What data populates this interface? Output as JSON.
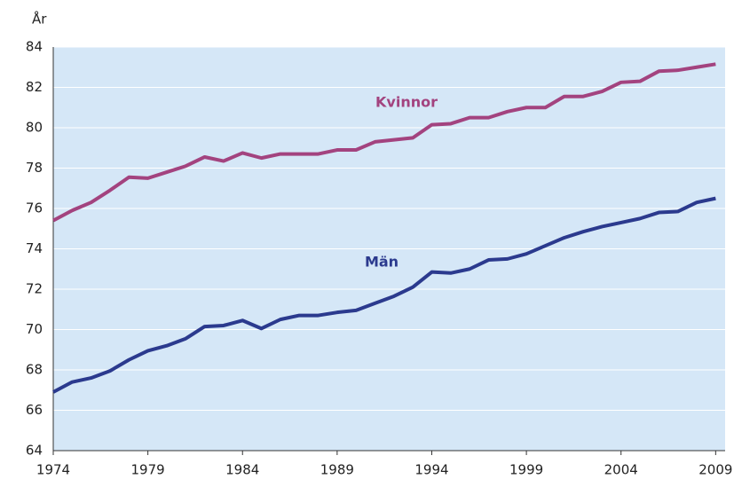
{
  "chart_data": {
    "type": "line",
    "y_label": "År",
    "x": [
      1974,
      1975,
      1976,
      1977,
      1978,
      1979,
      1980,
      1981,
      1982,
      1983,
      1984,
      1985,
      1986,
      1987,
      1988,
      1989,
      1990,
      1991,
      1992,
      1993,
      1994,
      1995,
      1996,
      1997,
      1998,
      1999,
      2000,
      2001,
      2002,
      2003,
      2004,
      2005,
      2006,
      2007,
      2008,
      2009
    ],
    "series": [
      {
        "name": "Kvinnor",
        "color": "#a3437f",
        "values": [
          75.4,
          75.9,
          76.3,
          76.9,
          77.55,
          77.5,
          77.8,
          78.1,
          78.55,
          78.35,
          78.75,
          78.5,
          78.7,
          78.7,
          78.7,
          78.9,
          78.9,
          79.3,
          79.4,
          79.5,
          80.15,
          80.2,
          80.5,
          80.5,
          80.8,
          81.0,
          81.0,
          81.55,
          81.55,
          81.8,
          82.25,
          82.3,
          82.8,
          82.85,
          83.0,
          83.15
        ]
      },
      {
        "name": "Män",
        "color": "#2b3a8e",
        "values": [
          66.9,
          67.4,
          67.6,
          67.95,
          68.5,
          68.95,
          69.2,
          69.55,
          70.15,
          70.2,
          70.45,
          70.05,
          70.5,
          70.7,
          70.7,
          70.85,
          70.95,
          71.3,
          71.65,
          72.1,
          72.85,
          72.8,
          73.0,
          73.45,
          73.5,
          73.75,
          74.15,
          74.55,
          74.85,
          75.1,
          75.3,
          75.5,
          75.8,
          75.85,
          76.3,
          76.5
        ]
      }
    ],
    "xlim": [
      1974,
      2009.5
    ],
    "xticks": [
      1974,
      1979,
      1984,
      1989,
      1994,
      1999,
      2004,
      2009
    ],
    "ylim": [
      64,
      84
    ],
    "yticks": [
      64,
      66,
      68,
      70,
      72,
      74,
      76,
      78,
      80,
      82,
      84
    ],
    "grid": true,
    "plot_background": "#d5e7f7"
  }
}
